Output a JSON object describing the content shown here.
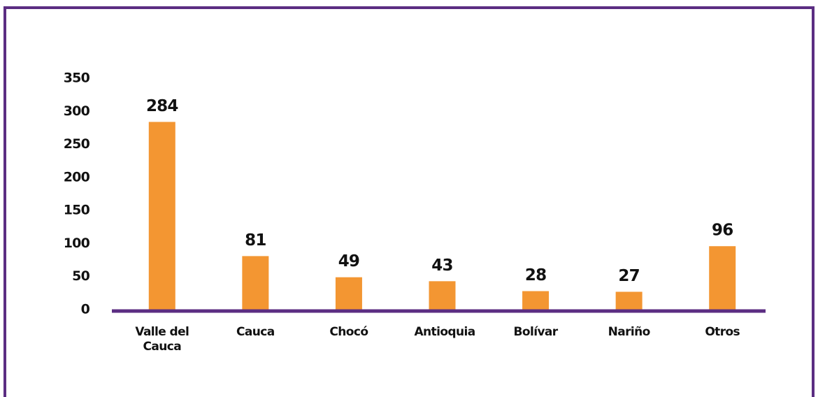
{
  "chart_data": {
    "type": "bar",
    "categories": [
      "Valle del Cauca",
      "Cauca",
      "Chocó",
      "Antioquia",
      "Bolívar",
      "Nariño",
      "Otros"
    ],
    "values": [
      284,
      81,
      49,
      43,
      28,
      27,
      96
    ],
    "color": "#f39632",
    "ylim": [
      0,
      350
    ],
    "yticks": [
      0,
      50,
      100,
      150,
      200,
      250,
      300,
      350
    ],
    "grid": false
  }
}
